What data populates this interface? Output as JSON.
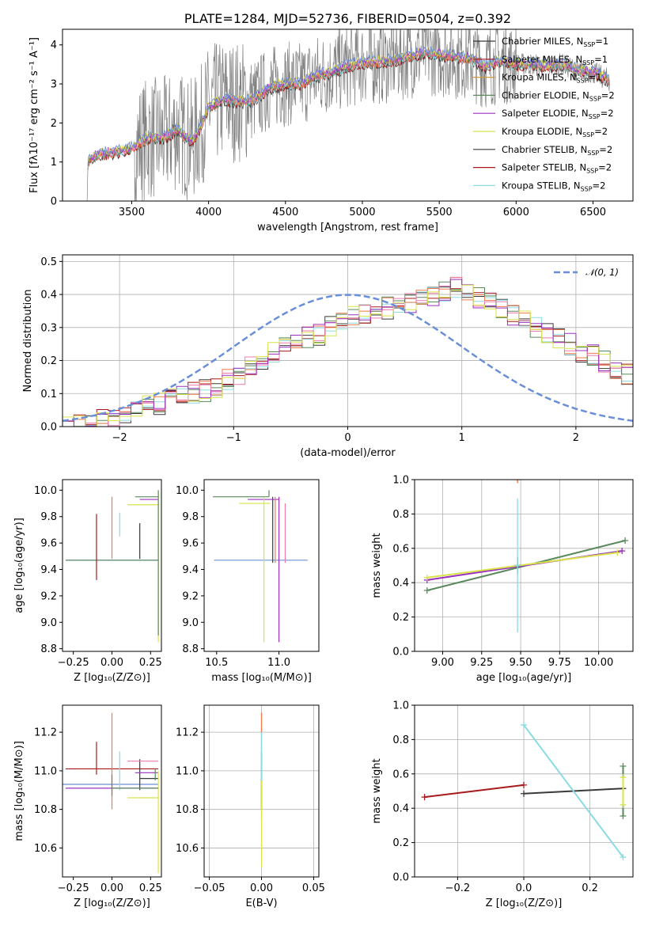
{
  "colors": {
    "data": "#808080",
    "normal": "#6a8fd8",
    "series": [
      "#3a3a3a",
      "#a8191b",
      "#8adce2",
      "#f07a4a",
      "#5a8a5e",
      "#ee7ab0",
      "#9a30c0",
      "#d9e34a",
      "#6a8fd8"
    ],
    "grid": "#b0b0b0"
  },
  "chart_data": [
    {
      "type": "line",
      "title": "PLATE=1284, MJD=52736, FIBERID=0504, z=0.392",
      "xlabel": "wavelength [Angstrom, rest frame]",
      "ylabel": "Flux [fλ10⁻¹⁷ erg cm⁻² s⁻¹ A⁻¹]",
      "xlim": [
        3050,
        6760
      ],
      "ylim": [
        0,
        4.4
      ],
      "xticks": [
        "3500",
        "4000",
        "4500",
        "5000",
        "5500",
        "6000",
        "6500"
      ],
      "yticks": [
        "0",
        "1",
        "2",
        "3",
        "4"
      ],
      "grid": false,
      "legend_position": "top-right",
      "continuum_x": [
        3210,
        3230,
        3300,
        3400,
        3500,
        3600,
        3700,
        3800,
        3850,
        3900,
        3950,
        4000,
        4100,
        4200,
        4300,
        4400,
        4500,
        4600,
        4700,
        4800,
        4900,
        5000,
        5100,
        5200,
        5300,
        5400,
        5500,
        5600,
        5700,
        5800,
        5900,
        6000,
        6100,
        6200,
        6300,
        6400,
        6500,
        6600
      ],
      "continuum_y": [
        0.9,
        1.1,
        1.2,
        1.25,
        1.35,
        1.6,
        1.6,
        1.85,
        1.6,
        1.55,
        1.9,
        2.4,
        2.6,
        2.55,
        2.6,
        2.9,
        3.0,
        3.0,
        3.2,
        3.3,
        3.45,
        3.55,
        3.55,
        3.6,
        3.7,
        3.8,
        3.75,
        3.7,
        3.65,
        3.45,
        3.6,
        3.5,
        3.5,
        3.45,
        3.5,
        3.35,
        3.3,
        3.1
      ],
      "series": [
        {
          "name": "Chabrier MILES, N",
          "sub": "SSP",
          "suffix": "=1"
        },
        {
          "name": "Salpeter MILES, N",
          "sub": "SSP",
          "suffix": "=1"
        },
        {
          "name": "Kroupa MILES, N",
          "sub": "SSP",
          "suffix": "=1"
        },
        {
          "name": "Chabrier ELODIE, N",
          "sub": "SSP",
          "suffix": "=2"
        },
        {
          "name": "Salpeter ELODIE, N",
          "sub": "SSP",
          "suffix": "=2"
        },
        {
          "name": "Kroupa ELODIE, N",
          "sub": "SSP",
          "suffix": "=2"
        },
        {
          "name": "Chabrier STELIB, N",
          "sub": "SSP",
          "suffix": "=2"
        },
        {
          "name": "Salpeter STELIB, N",
          "sub": "SSP",
          "suffix": "=2"
        },
        {
          "name": "Kroupa STELIB, N",
          "sub": "SSP",
          "suffix": "=2"
        }
      ],
      "legend_colors": [
        "#3a3a3a",
        "#a8191b",
        "#d09a3a",
        "#5a8a5e",
        "#9a30c0",
        "#d9e34a",
        "#3a3a3a",
        "#a8191b",
        "#8adce2"
      ]
    },
    {
      "type": "histogram",
      "xlabel": "(data-model)/error",
      "ylabel": "Normed distribution",
      "xlim": [
        -2.5,
        2.5
      ],
      "ylim": [
        0,
        0.52
      ],
      "xticks": [
        "−2",
        "−1",
        "0",
        "1",
        "2"
      ],
      "yticks": [
        "0.0",
        "0.1",
        "0.2",
        "0.3",
        "0.4",
        "0.5"
      ],
      "grid": true,
      "legend": "𝒩(0, 1)",
      "bin_edges_start": -2.5,
      "bin_width": 0.1,
      "base_values": [
        0.005,
        0.01,
        0.015,
        0.02,
        0.03,
        0.04,
        0.05,
        0.06,
        0.07,
        0.085,
        0.095,
        0.1,
        0.11,
        0.12,
        0.14,
        0.16,
        0.18,
        0.2,
        0.22,
        0.24,
        0.26,
        0.27,
        0.28,
        0.3,
        0.32,
        0.33,
        0.34,
        0.35,
        0.36,
        0.37,
        0.38,
        0.39,
        0.4,
        0.41,
        0.42,
        0.4,
        0.39,
        0.37,
        0.36,
        0.34,
        0.32,
        0.3,
        0.28,
        0.27,
        0.25,
        0.23,
        0.22,
        0.2,
        0.18,
        0.16
      ]
    },
    {
      "type": "scatter",
      "xlabel": "Z [log₁₀(Z/Z⊙)]",
      "ylabel": "age  [log₁₀(age/yr)]",
      "xlim": [
        -0.32,
        0.32
      ],
      "ylim": [
        8.78,
        10.08
      ],
      "xticks": [
        "−0.25",
        "0.00",
        "0.25"
      ],
      "yticks": [
        "8.8",
        "9.0",
        "9.2",
        "9.4",
        "9.6",
        "9.8",
        "10.0"
      ]
    },
    {
      "type": "scatter",
      "xlabel": "mass [log₁₀(M/M⊙)]",
      "xlim": [
        10.4,
        11.32
      ],
      "ylim": [
        8.78,
        10.08
      ],
      "xticks": [
        "10.5",
        "11.0"
      ],
      "yticks": [
        "8.8",
        "9.0",
        "9.2",
        "9.4",
        "9.6",
        "9.8",
        "10.0"
      ]
    },
    {
      "type": "line",
      "xlabel": "age  [log₁₀(age/yr)]",
      "ylabel": "mass weight",
      "xlim": [
        8.82,
        10.22
      ],
      "ylim": [
        0,
        1.0
      ],
      "xticks": [
        "9.00",
        "9.25",
        "9.50",
        "9.75",
        "10.00"
      ],
      "yticks": [
        "0.0",
        "0.2",
        "0.4",
        "0.6",
        "0.8",
        "1.0"
      ],
      "grid": true,
      "series": [
        {
          "color": "#5a8a5e",
          "x": [
            8.9,
            10.17
          ],
          "y": [
            0.355,
            0.645
          ]
        },
        {
          "color": "#9a30c0",
          "x": [
            8.9,
            10.15
          ],
          "y": [
            0.415,
            0.585
          ]
        },
        {
          "color": "#d9e34a",
          "x": [
            8.9,
            10.12
          ],
          "y": [
            0.43,
            0.575
          ]
        },
        {
          "color": "#3a3a3a",
          "x": [
            9.48
          ],
          "y": [
            0.5
          ],
          "yerr": [
            0.05
          ]
        },
        {
          "color": "#8adce2",
          "x": [
            9.48
          ],
          "y": [
            0.5
          ],
          "yerr": [
            0.39
          ]
        },
        {
          "color": "#f07a4a",
          "x": [
            9.48
          ],
          "y": [
            1.0
          ],
          "yerr": [
            0.02
          ]
        }
      ]
    },
    {
      "type": "scatter",
      "xlabel": "Z [log₁₀(Z/Z⊙)]",
      "ylabel": "mass [log₁₀(M/M⊙)]",
      "xlim": [
        -0.32,
        0.32
      ],
      "ylim": [
        10.45,
        11.34
      ],
      "xticks": [
        "−0.25",
        "0.00",
        "0.25"
      ],
      "yticks": [
        "10.6",
        "10.8",
        "11.0",
        "11.2"
      ]
    },
    {
      "type": "scatter",
      "xlabel": "E(B-V)",
      "xlim": [
        -0.055,
        0.055
      ],
      "ylim": [
        10.45,
        11.34
      ],
      "xticks": [
        "−0.05",
        "0.00",
        "0.05"
      ],
      "yticks": [
        "10.6",
        "10.8",
        "11.0",
        "11.2"
      ],
      "grid": true
    },
    {
      "type": "line",
      "xlabel": "Z [log₁₀(Z/Z⊙)]",
      "ylabel": "mass weight",
      "xlim": [
        -0.33,
        0.33
      ],
      "ylim": [
        0,
        1.0
      ],
      "xticks": [
        "−0.2",
        "0.0",
        "0.2"
      ],
      "yticks": [
        "0.0",
        "0.2",
        "0.4",
        "0.6",
        "0.8",
        "1.0"
      ],
      "grid": true,
      "series": [
        {
          "color": "#a8191b",
          "x": [
            -0.3,
            0.0
          ],
          "y": [
            0.465,
            0.535
          ]
        },
        {
          "color": "#3a3a3a",
          "x": [
            0.0,
            0.3
          ],
          "y": [
            0.485,
            0.515
          ]
        },
        {
          "color": "#8adce2",
          "x": [
            0.0,
            0.3
          ],
          "y": [
            0.885,
            0.115
          ]
        },
        {
          "color": "#5a8a5e",
          "x": [
            0.3,
            0.3
          ],
          "y": [
            0.355,
            0.645
          ]
        },
        {
          "color": "#d9e34a",
          "x": [
            0.3,
            0.3
          ],
          "y": [
            0.42,
            0.58
          ]
        }
      ]
    }
  ]
}
